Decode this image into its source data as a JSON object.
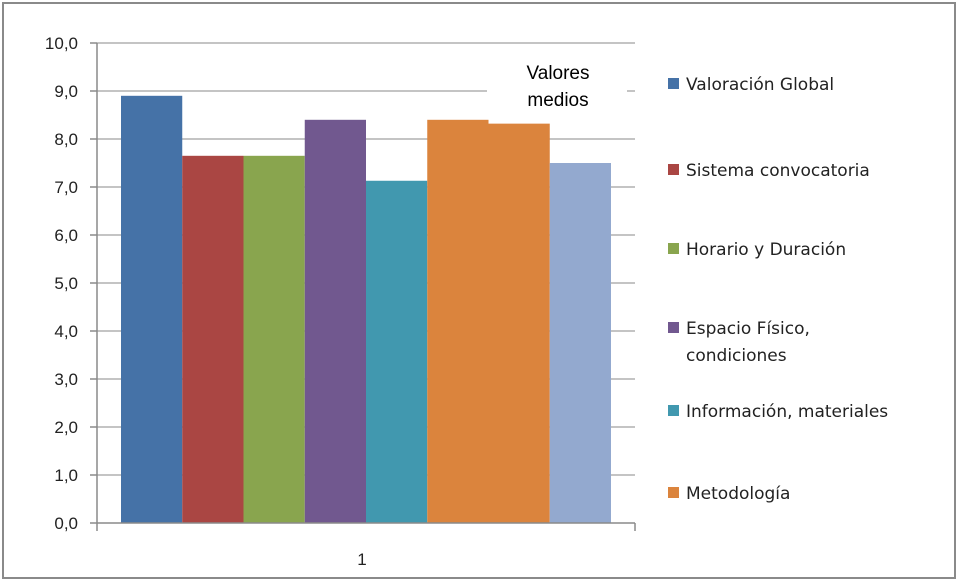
{
  "chart_data": {
    "type": "bar",
    "categories": [
      "1"
    ],
    "ylim": [
      0,
      10
    ],
    "yticks": [
      "0,0",
      "1,0",
      "2,0",
      "3,0",
      "4,0",
      "5,0",
      "6,0",
      "7,0",
      "8,0",
      "9,0",
      "10,0"
    ],
    "grid": true,
    "legend_position": "right",
    "annotation": [
      "Valores",
      "medios"
    ],
    "series": [
      {
        "name": "Valoración Global",
        "values": [
          8.9
        ],
        "color": "#4572a7"
      },
      {
        "name": "Sistema convocatoria",
        "values": [
          7.65
        ],
        "color": "#aa4643"
      },
      {
        "name": "Horario y Duración",
        "values": [
          7.65
        ],
        "color": "#89a54e"
      },
      {
        "name": "Espacio Físico, condiciones",
        "legend_lines": [
          "Espacio Físico,",
          "condiciones"
        ],
        "values": [
          8.4
        ],
        "color": "#71588f"
      },
      {
        "name": "Información, materiales",
        "values": [
          7.13
        ],
        "color": "#4198af"
      },
      {
        "name": "Metodología",
        "values": [
          8.4
        ],
        "color": "#db843d"
      },
      {
        "name": "",
        "values": [
          8.32
        ],
        "color": "#db843d"
      },
      {
        "name": "",
        "values": [
          7.5
        ],
        "color": "#93a9cf"
      }
    ]
  }
}
